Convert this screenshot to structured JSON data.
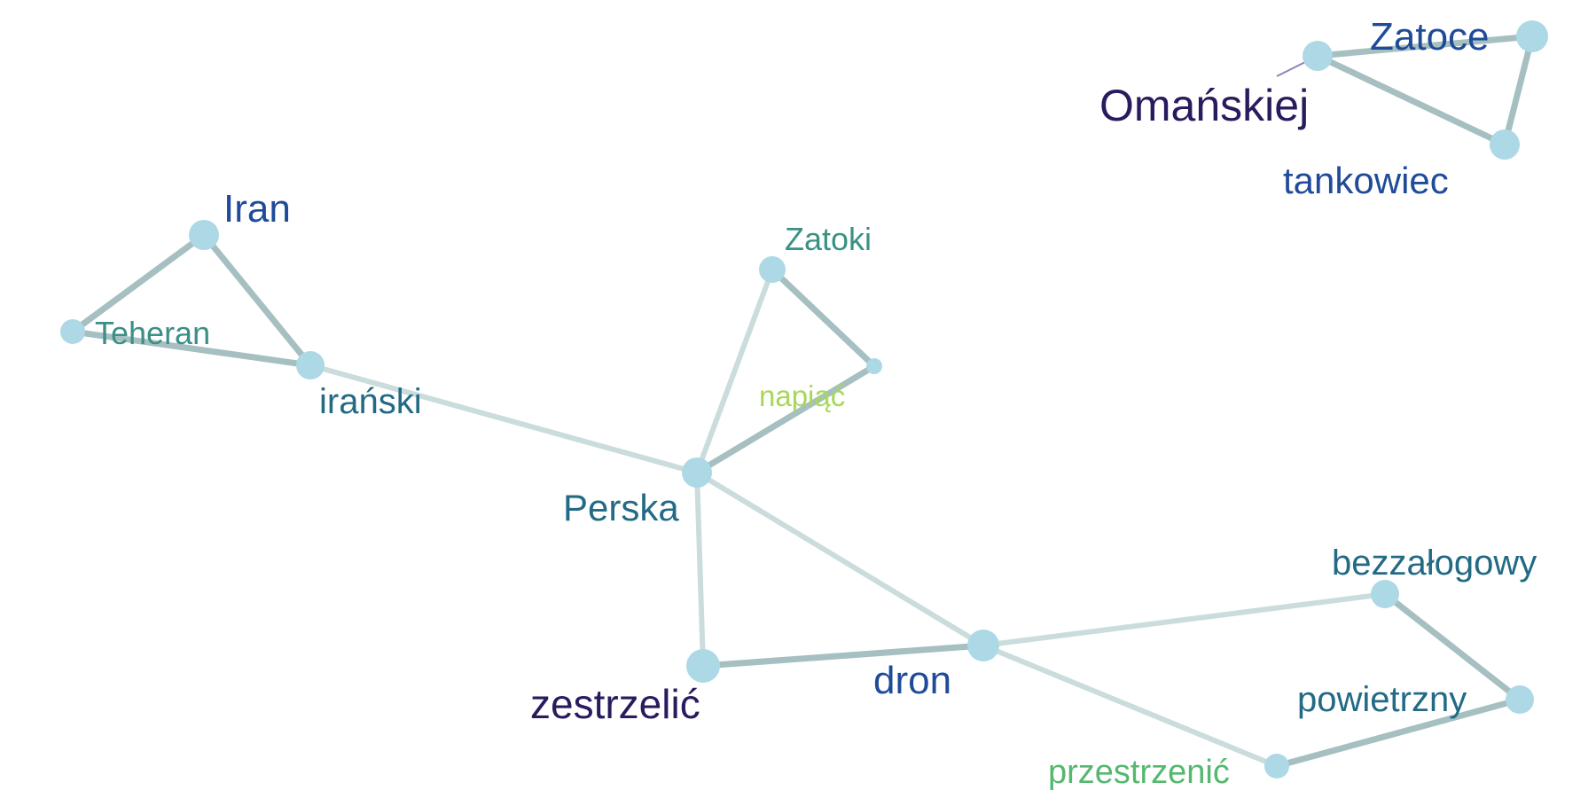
{
  "nodes": [
    {
      "id": "iran",
      "label": "Iran",
      "color": "#1f4b99"
    },
    {
      "id": "teheran",
      "label": "Teheran",
      "color": "#3a8f86"
    },
    {
      "id": "iranski",
      "label": "irański",
      "color": "#236a85"
    },
    {
      "id": "zatoki",
      "label": "Zatoki",
      "color": "#3a9184"
    },
    {
      "id": "napiac",
      "label": "napiąć",
      "color": "#a8d75a"
    },
    {
      "id": "perska",
      "label": "Perska",
      "color": "#236a85"
    },
    {
      "id": "zestrzelic",
      "label": "zestrzelić",
      "color": "#2a1a5e"
    },
    {
      "id": "dron",
      "label": "dron",
      "color": "#1f4b99"
    },
    {
      "id": "bezzalogowy",
      "label": "bezzałogowy",
      "color": "#236a85"
    },
    {
      "id": "powietrzny",
      "label": "powietrzny",
      "color": "#236a85"
    },
    {
      "id": "przestrzenic",
      "label": "przestrzenić",
      "color": "#56b870"
    },
    {
      "id": "zatoce",
      "label": "Zatoce",
      "color": "#1f4b99"
    },
    {
      "id": "omanskiej",
      "label": "Omańskiej",
      "color": "#2a1a5e"
    },
    {
      "id": "tankowiec",
      "label": "tankowiec",
      "color": "#1f4b99"
    }
  ],
  "edges": [
    {
      "source": "iran",
      "target": "teheran",
      "strength": "strong"
    },
    {
      "source": "iran",
      "target": "iranski",
      "strength": "strong"
    },
    {
      "source": "teheran",
      "target": "iranski",
      "strength": "strong"
    },
    {
      "source": "iranski",
      "target": "perska",
      "strength": "weak"
    },
    {
      "source": "zatoki",
      "target": "napiac",
      "strength": "strong"
    },
    {
      "source": "zatoki",
      "target": "perska",
      "strength": "weak"
    },
    {
      "source": "napiac",
      "target": "perska",
      "strength": "strong"
    },
    {
      "source": "perska",
      "target": "zestrzelic",
      "strength": "weak"
    },
    {
      "source": "perska",
      "target": "dron",
      "strength": "weak"
    },
    {
      "source": "zestrzelic",
      "target": "dron",
      "strength": "strong"
    },
    {
      "source": "dron",
      "target": "bezzalogowy",
      "strength": "weak"
    },
    {
      "source": "dron",
      "target": "przestrzenic",
      "strength": "weak"
    },
    {
      "source": "bezzalogowy",
      "target": "powietrzny",
      "strength": "strong"
    },
    {
      "source": "powietrzny",
      "target": "przestrzenic",
      "strength": "strong"
    },
    {
      "source": "zatoce",
      "target": "omanskiej",
      "strength": "strong"
    },
    {
      "source": "zatoce",
      "target": "tankowiec",
      "strength": "strong"
    },
    {
      "source": "omanskiej",
      "target": "tankowiec",
      "strength": "strong"
    }
  ],
  "colors": {
    "node_fill": "#add8e6",
    "edge_strong": "#a6bfc0",
    "edge_weak": "#cbdcdd",
    "leader_line": "#8a84b8"
  }
}
